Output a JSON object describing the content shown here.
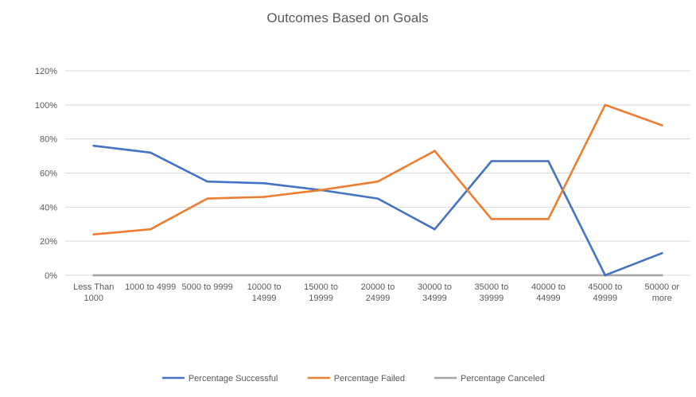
{
  "chart_data": {
    "type": "line",
    "title": "Outcomes Based on Goals",
    "xlabel": "",
    "ylabel": "",
    "ylim": [
      0,
      120
    ],
    "y_ticks": [
      "0%",
      "20%",
      "40%",
      "60%",
      "80%",
      "100%",
      "120%"
    ],
    "y_tick_values": [
      0,
      20,
      40,
      60,
      80,
      100,
      120
    ],
    "grid": true,
    "legend_position": "bottom",
    "categories": [
      [
        "Less Than",
        "1000"
      ],
      [
        "1000 to 4999"
      ],
      [
        "5000 to 9999"
      ],
      [
        "10000 to",
        "14999"
      ],
      [
        "15000 to",
        "19999"
      ],
      [
        "20000 to",
        "24999"
      ],
      [
        "30000 to",
        "34999"
      ],
      [
        "35000 to",
        "39999"
      ],
      [
        "40000 to",
        "44999"
      ],
      [
        "45000 to",
        "49999"
      ],
      [
        "50000 or",
        "more"
      ]
    ],
    "series": [
      {
        "name": "Percentage Successful",
        "color": "#4472c4",
        "values": [
          76,
          72,
          55,
          54,
          50,
          45,
          27,
          67,
          67,
          0,
          13
        ]
      },
      {
        "name": "Percentage Failed",
        "color": "#ed7d31",
        "values": [
          24,
          27,
          45,
          46,
          50,
          55,
          73,
          33,
          33,
          100,
          88
        ]
      },
      {
        "name": "Percentage Canceled",
        "color": "#a5a5a5",
        "values": [
          0,
          0,
          0,
          0,
          0,
          0,
          0,
          0,
          0,
          0,
          0
        ]
      }
    ]
  }
}
